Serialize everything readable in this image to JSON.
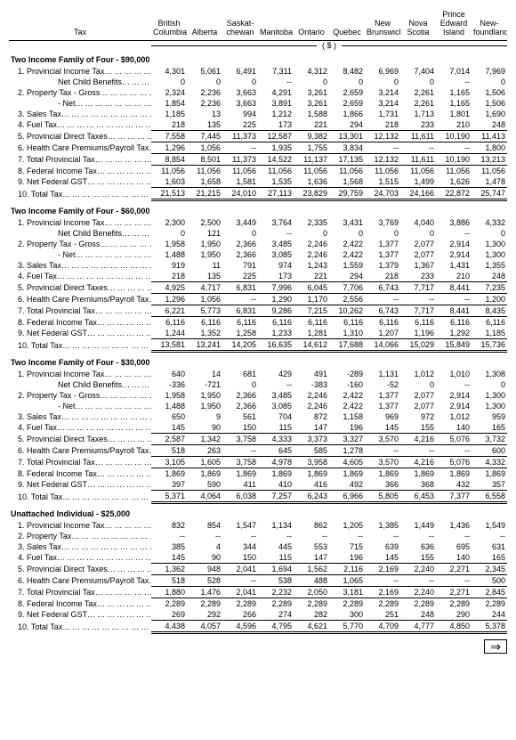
{
  "headers": {
    "tax_label": "Tax",
    "bc": "British\nColumbia",
    "ab": "Alberta",
    "sk": "Saskat-\nchewan",
    "mb": "Manitoba",
    "on": "Ontario",
    "qc": "Quebec",
    "nb": "New\nBrunswick",
    "ns": "Nova\nScotia",
    "pe": "Prince\nEdward\nIsland",
    "nl": "New-\nfoundland",
    "currency": "( $ )"
  },
  "sections": [
    {
      "title": "Two Income Family of Four - $90,000",
      "rows": [
        {
          "l": "1.  Provincial Income Tax",
          "i": "indent1",
          "d": true,
          "v": [
            "4,301",
            "5,061",
            "6,491",
            "7,311",
            "4,312",
            "8,482",
            "6,969",
            "7,404",
            "7,014",
            "7,969"
          ]
        },
        {
          "l": "Net Child Benefits",
          "i": "indent2",
          "d": true,
          "v": [
            "0",
            "0",
            "0",
            "--",
            "0",
            "0",
            "0",
            "0",
            "--",
            "0"
          ]
        },
        {
          "l": "2.  Property Tax - Gross",
          "i": "indent1",
          "d": true,
          "v": [
            "2,324",
            "2,236",
            "3,663",
            "4,291",
            "3,261",
            "2,659",
            "3,214",
            "2,261",
            "1,165",
            "1,506"
          ]
        },
        {
          "l": "- Net",
          "i": "indent2",
          "d": true,
          "v": [
            "1,854",
            "2,236",
            "3,663",
            "3,891",
            "3,261",
            "2,659",
            "3,214",
            "2,261",
            "1,165",
            "1,506"
          ]
        },
        {
          "l": "3.  Sales Tax",
          "i": "indent1",
          "d": true,
          "v": [
            "1,185",
            "13",
            "994",
            "1,212",
            "1,588",
            "1,866",
            "1,731",
            "1,713",
            "1,801",
            "1,690"
          ]
        },
        {
          "l": "4.  Fuel Tax",
          "i": "indent1",
          "d": true,
          "v": [
            "218",
            "135",
            "225",
            "173",
            "221",
            "294",
            "218",
            "233",
            "210",
            "248"
          ]
        },
        {
          "l": "5.  Provincial Direct Taxes",
          "i": "indent1",
          "d": true,
          "cls": "top-thin",
          "v": [
            "7,558",
            "7,445",
            "11,373",
            "12,587",
            "9,382",
            "13,301",
            "12,132",
            "11,611",
            "10,190",
            "11,413"
          ]
        },
        {
          "l": "6.  Health Care Premiums/Payroll Tax",
          "i": "indent1",
          "d": true,
          "cls": "top-thin",
          "v": [
            "1,296",
            "1,056",
            "--",
            "1,935",
            "1,755",
            "3,834",
            "--",
            "--",
            "--",
            "1,800"
          ]
        },
        {
          "l": "7.  Total Provincial Tax",
          "i": "indent1",
          "d": true,
          "cls": "top-thin",
          "v": [
            "8,854",
            "8,501",
            "11,373",
            "14,522",
            "11,137",
            "17,135",
            "12,132",
            "11,611",
            "10,190",
            "13,213"
          ]
        },
        {
          "l": "8.  Federal Income Tax",
          "i": "indent1",
          "d": true,
          "cls": "top-thin",
          "v": [
            "11,056",
            "11,056",
            "11,056",
            "11,056",
            "11,056",
            "11,056",
            "11,056",
            "11,056",
            "11,056",
            "11,056"
          ]
        },
        {
          "l": "9.  Net Federal GST",
          "i": "indent1",
          "d": true,
          "v": [
            "1,603",
            "1,658",
            "1,581",
            "1,535",
            "1,636",
            "1,568",
            "1,515",
            "1,499",
            "1,626",
            "1,478"
          ]
        },
        {
          "l": "10.  Total Tax",
          "i": "indent1",
          "d": true,
          "cls": "dbl",
          "v": [
            "21,513",
            "21,215",
            "24,010",
            "27,113",
            "23,829",
            "29,759",
            "24,703",
            "24,166",
            "22,872",
            "25,747"
          ]
        }
      ]
    },
    {
      "title": "Two Income Family of Four - $60,000",
      "rows": [
        {
          "l": "1.  Provincial Income Tax",
          "i": "indent1",
          "d": true,
          "v": [
            "2,300",
            "2,500",
            "3,449",
            "3,764",
            "2,335",
            "3,431",
            "3,769",
            "4,040",
            "3,886",
            "4,332"
          ]
        },
        {
          "l": "Net Child Benefits",
          "i": "indent2",
          "d": true,
          "v": [
            "0",
            "121",
            "0",
            "--",
            "0",
            "0",
            "0",
            "0",
            "--",
            "0"
          ]
        },
        {
          "l": "2.  Property Tax - Gross",
          "i": "indent1",
          "d": true,
          "v": [
            "1,958",
            "1,950",
            "2,366",
            "3,485",
            "2,246",
            "2,422",
            "1,377",
            "2,077",
            "2,914",
            "1,300"
          ]
        },
        {
          "l": "- Net",
          "i": "indent2",
          "d": true,
          "v": [
            "1,488",
            "1,950",
            "2,366",
            "3,085",
            "2,246",
            "2,422",
            "1,377",
            "2,077",
            "2,914",
            "1,300"
          ]
        },
        {
          "l": "3.  Sales Tax",
          "i": "indent1",
          "d": true,
          "v": [
            "919",
            "11",
            "791",
            "974",
            "1,243",
            "1,559",
            "1,379",
            "1,367",
            "1,431",
            "1,355"
          ]
        },
        {
          "l": "4.  Fuel Tax",
          "i": "indent1",
          "d": true,
          "v": [
            "218",
            "135",
            "225",
            "173",
            "221",
            "294",
            "218",
            "233",
            "210",
            "248"
          ]
        },
        {
          "l": "5.  Provincial Direct Taxes",
          "i": "indent1",
          "d": true,
          "cls": "top-thin",
          "v": [
            "4,925",
            "4,717",
            "6,831",
            "7,996",
            "6,045",
            "7,706",
            "6,743",
            "7,717",
            "8,441",
            "7,235"
          ]
        },
        {
          "l": "6.  Health Care Premiums/Payroll Tax",
          "i": "indent1",
          "d": true,
          "cls": "top-thin",
          "v": [
            "1,296",
            "1,056",
            "--",
            "1,290",
            "1,170",
            "2,556",
            "--",
            "--",
            "--",
            "1,200"
          ]
        },
        {
          "l": "7.  Total Provincial Tax",
          "i": "indent1",
          "d": true,
          "cls": "top-thin",
          "v": [
            "6,221",
            "5,773",
            "6,831",
            "9,286",
            "7,215",
            "10,262",
            "6,743",
            "7,717",
            "8,441",
            "8,435"
          ]
        },
        {
          "l": "8.  Federal Income Tax",
          "i": "indent1",
          "d": true,
          "cls": "top-thin",
          "v": [
            "6,116",
            "6,116",
            "6,116",
            "6,116",
            "6,116",
            "6,116",
            "6,116",
            "6,116",
            "6,116",
            "6,116"
          ]
        },
        {
          "l": "9.  Net Federal GST",
          "i": "indent1",
          "d": true,
          "v": [
            "1,244",
            "1,352",
            "1,258",
            "1,233",
            "1,281",
            "1,310",
            "1,207",
            "1,196",
            "1,292",
            "1,185"
          ]
        },
        {
          "l": "10.  Total Tax",
          "i": "indent1",
          "d": true,
          "cls": "dbl",
          "v": [
            "13,581",
            "13,241",
            "14,205",
            "16,635",
            "14,612",
            "17,688",
            "14,066",
            "15,029",
            "15,849",
            "15,736"
          ]
        }
      ]
    },
    {
      "title": "Two Income Family of Four - $30,000",
      "rows": [
        {
          "l": "1.  Provincial Income Tax",
          "i": "indent1",
          "d": true,
          "v": [
            "640",
            "14",
            "681",
            "429",
            "491",
            "-289",
            "1,131",
            "1,012",
            "1,010",
            "1,308"
          ]
        },
        {
          "l": "Net Child Benefits",
          "i": "indent2",
          "d": true,
          "v": [
            "-336",
            "-721",
            "0",
            "--",
            "-383",
            "-160",
            "-52",
            "0",
            "--",
            "0"
          ]
        },
        {
          "l": "2.  Property Tax - Gross",
          "i": "indent1",
          "d": true,
          "v": [
            "1,958",
            "1,950",
            "2,366",
            "3,485",
            "2,246",
            "2,422",
            "1,377",
            "2,077",
            "2,914",
            "1,300"
          ]
        },
        {
          "l": "- Net",
          "i": "indent2",
          "d": true,
          "v": [
            "1,488",
            "1,950",
            "2,366",
            "3,085",
            "2,246",
            "2,422",
            "1,377",
            "2,077",
            "2,914",
            "1,300"
          ]
        },
        {
          "l": "3.  Sales Tax",
          "i": "indent1",
          "d": true,
          "v": [
            "650",
            "9",
            "561",
            "704",
            "872",
            "1,158",
            "969",
            "972",
            "1,012",
            "959"
          ]
        },
        {
          "l": "4.  Fuel Tax",
          "i": "indent1",
          "d": true,
          "v": [
            "145",
            "90",
            "150",
            "115",
            "147",
            "196",
            "145",
            "155",
            "140",
            "165"
          ]
        },
        {
          "l": "5.  Provincial Direct Taxes",
          "i": "indent1",
          "d": true,
          "cls": "top-thin",
          "v": [
            "2,587",
            "1,342",
            "3,758",
            "4,333",
            "3,373",
            "3,327",
            "3,570",
            "4,216",
            "5,076",
            "3,732"
          ]
        },
        {
          "l": "6.  Health Care Premiums/Payroll Tax",
          "i": "indent1",
          "d": true,
          "cls": "top-thin",
          "v": [
            "518",
            "263",
            "--",
            "645",
            "585",
            "1,278",
            "--",
            "--",
            "--",
            "600"
          ]
        },
        {
          "l": "7.  Total Provincial Tax",
          "i": "indent1",
          "d": true,
          "cls": "top-thin",
          "v": [
            "3,105",
            "1,605",
            "3,758",
            "4,978",
            "3,958",
            "4,605",
            "3,570",
            "4,216",
            "5,076",
            "4,332"
          ]
        },
        {
          "l": "8.  Federal Income Tax",
          "i": "indent1",
          "d": true,
          "cls": "top-thin",
          "v": [
            "1,869",
            "1,869",
            "1,869",
            "1,869",
            "1,869",
            "1,869",
            "1,869",
            "1,869",
            "1,869",
            "1,869"
          ]
        },
        {
          "l": "9.  Net Federal GST",
          "i": "indent1",
          "d": true,
          "v": [
            "397",
            "590",
            "411",
            "410",
            "416",
            "492",
            "366",
            "368",
            "432",
            "357"
          ]
        },
        {
          "l": "10.  Total Tax",
          "i": "indent1",
          "d": true,
          "cls": "dbl",
          "v": [
            "5,371",
            "4,064",
            "6,038",
            "7,257",
            "6,243",
            "6,966",
            "5,805",
            "6,453",
            "7,377",
            "6,558"
          ]
        }
      ]
    },
    {
      "title": "Unattached Individual - $25,000",
      "rows": [
        {
          "l": "1.  Provincial Income Tax",
          "i": "indent1",
          "d": true,
          "v": [
            "832",
            "854",
            "1,547",
            "1,134",
            "862",
            "1,205",
            "1,385",
            "1,449",
            "1,436",
            "1,549"
          ]
        },
        {
          "l": "2.  Property Tax",
          "i": "indent1",
          "d": true,
          "v": [
            "--",
            "--",
            "--",
            "--",
            "--",
            "--",
            "--",
            "--",
            "--",
            "--"
          ]
        },
        {
          "l": "3.  Sales Tax",
          "i": "indent1",
          "d": true,
          "v": [
            "385",
            "4",
            "344",
            "445",
            "553",
            "715",
            "639",
            "636",
            "695",
            "631"
          ]
        },
        {
          "l": "4.  Fuel Tax",
          "i": "indent1",
          "d": true,
          "v": [
            "145",
            "90",
            "150",
            "115",
            "147",
            "196",
            "145",
            "155",
            "140",
            "165"
          ]
        },
        {
          "l": "5.  Provincial Direct Taxes",
          "i": "indent1",
          "d": true,
          "cls": "top-thin",
          "v": [
            "1,362",
            "948",
            "2,041",
            "1,694",
            "1,562",
            "2,116",
            "2,169",
            "2,240",
            "2,271",
            "2,345"
          ]
        },
        {
          "l": "6.  Health Care Premiums/Payroll Tax",
          "i": "indent1",
          "d": true,
          "cls": "top-thin",
          "v": [
            "518",
            "528",
            "--",
            "538",
            "488",
            "1,065",
            "--",
            "--",
            "--",
            "500"
          ]
        },
        {
          "l": "7.  Total Provincial Tax",
          "i": "indent1",
          "d": true,
          "cls": "top-thin",
          "v": [
            "1,880",
            "1,476",
            "2,041",
            "2,232",
            "2,050",
            "3,181",
            "2,169",
            "2,240",
            "2,271",
            "2,845"
          ]
        },
        {
          "l": "8.  Federal Income Tax",
          "i": "indent1",
          "d": true,
          "cls": "top-thin",
          "v": [
            "2,289",
            "2,289",
            "2,289",
            "2,289",
            "2,289",
            "2,289",
            "2,289",
            "2,289",
            "2,289",
            "2,289"
          ]
        },
        {
          "l": "9.  Net Federal GST",
          "i": "indent1",
          "d": true,
          "v": [
            "269",
            "292",
            "266",
            "274",
            "282",
            "300",
            "251",
            "248",
            "290",
            "244"
          ]
        },
        {
          "l": "10.  Total Tax",
          "i": "indent1",
          "d": true,
          "cls": "dbl",
          "v": [
            "4,438",
            "4,057",
            "4,596",
            "4,795",
            "4,621",
            "5,770",
            "4,709",
            "4,777",
            "4,850",
            "5,378"
          ]
        }
      ]
    }
  ],
  "arrow": "⇒"
}
